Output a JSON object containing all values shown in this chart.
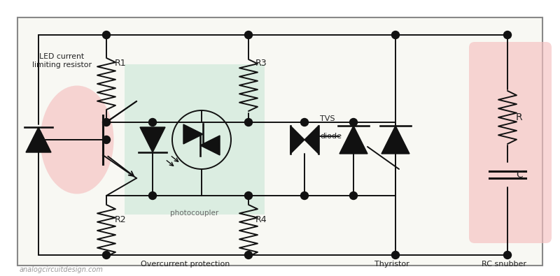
{
  "bg_color": "#f8f8f3",
  "border_color": "#666666",
  "line_color": "#111111",
  "label_color": "#222222",
  "photocoupler_bg": "#cce8d8",
  "rc_snubber_bg": "#f5c0c0",
  "transistor_bg": "#f5c0c0",
  "title_text": "analogcircuitdesign.com",
  "figw": 8.0,
  "figh": 3.95,
  "xlim": [
    0,
    8.0
  ],
  "ylim": [
    0,
    3.95
  ]
}
